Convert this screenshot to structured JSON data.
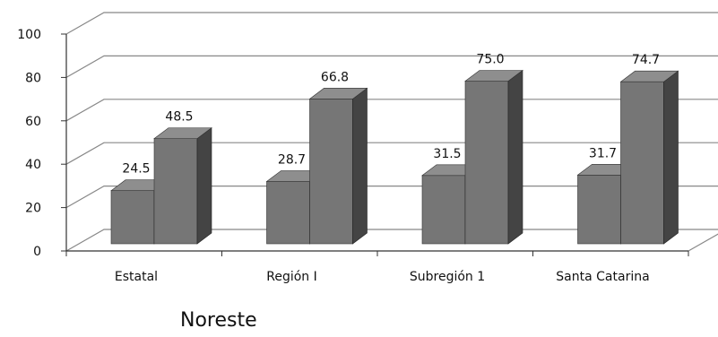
{
  "chart_data": {
    "type": "bar",
    "categories": [
      "Estatal",
      "Región I",
      "Subregión 1",
      "Santa Catarina"
    ],
    "series": [
      {
        "values": [
          24.5,
          28.7,
          31.5,
          31.7
        ],
        "labels": [
          "24.5",
          "28.7",
          "31.5",
          "31.7"
        ]
      },
      {
        "values": [
          48.5,
          66.8,
          75.0,
          74.7
        ],
        "labels": [
          "48.5",
          "66.8",
          "75.0",
          "74.7"
        ]
      }
    ],
    "ylim": [
      0,
      100
    ],
    "yticks": [
      "0",
      "20",
      "40",
      "60",
      "80",
      "100"
    ],
    "grid": true,
    "three_d": true,
    "legend_text": "Noreste",
    "legend_position": "bottom-left",
    "colors": {
      "bar_front": "#767676",
      "bar_side": "#444444",
      "bar_top": "#8e8e8e",
      "grid": "#888888",
      "axis": "#333333"
    }
  }
}
